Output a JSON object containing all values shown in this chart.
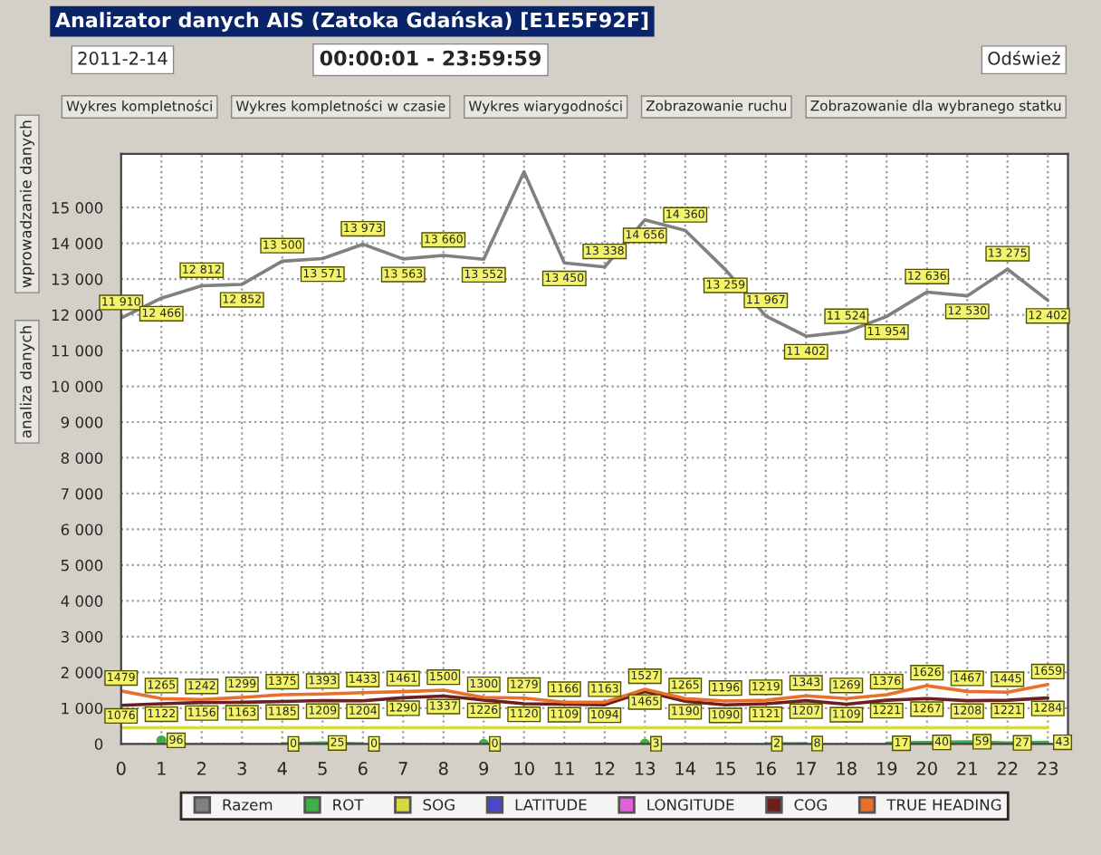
{
  "chart_data": {
    "type": "line",
    "title": "Analizator danych AIS (Zatoka Gdańska) [E1E5F92F]",
    "annotations": [
      "2011-2-14",
      "00:00:01 - 23:59:59",
      "Odśwież",
      "Wykres kompletności",
      "Wykres kompletności w czasie",
      "Wykres wiarygodności",
      "Zobrazowanie ruchu",
      "Zobrazowanie dla wybranego statku",
      "wprowadzanie danych",
      "analiza danych"
    ],
    "x": [
      0,
      1,
      2,
      3,
      4,
      5,
      6,
      7,
      8,
      9,
      10,
      11,
      12,
      13,
      14,
      15,
      16,
      17,
      18,
      19,
      20,
      21,
      22,
      23
    ],
    "xlim": [
      0,
      23.5
    ],
    "xticks": [
      0,
      1,
      2,
      3,
      4,
      5,
      6,
      7,
      8,
      9,
      10,
      11,
      12,
      13,
      14,
      15,
      16,
      17,
      18,
      19,
      20,
      21,
      22,
      23
    ],
    "ylim": [
      0,
      16500
    ],
    "yticks": [
      0,
      {
        "value": 1000,
        "label": "1 000"
      },
      {
        "value": 2000,
        "label": "2 000"
      },
      {
        "value": 3000,
        "label": "3 000"
      },
      {
        "value": 4000,
        "label": "4 000"
      },
      {
        "value": 5000,
        "label": "5 000"
      },
      {
        "value": 6000,
        "label": "6 000"
      },
      {
        "value": 7000,
        "label": "7 000"
      },
      {
        "value": 8000,
        "label": "8 000"
      },
      {
        "value": 9000,
        "label": "9 000"
      },
      {
        "value": 10000,
        "label": "10 000"
      },
      {
        "value": 11000,
        "label": "11 000"
      },
      {
        "value": 12000,
        "label": "12 000"
      },
      {
        "value": 13000,
        "label": "13 000"
      },
      {
        "value": 14000,
        "label": "14 000"
      },
      {
        "value": 15000,
        "label": "15 000"
      }
    ],
    "grid": true,
    "legend": "bottom",
    "marker": "none",
    "line_style": "solid",
    "series": [
      {
        "name": "Razem",
        "color": "#808080",
        "values": [
          11910,
          12466,
          12812,
          12852,
          13500,
          13571,
          13973,
          13563,
          13660,
          13552,
          16000,
          13450,
          13338,
          14656,
          14360,
          13259,
          11967,
          11402,
          11524,
          11954,
          12636,
          12530,
          13275,
          12402
        ],
        "value_labels": [
          "11 910",
          "12 466",
          "12 812",
          "12 852",
          "13 500",
          "13 571",
          "13 973",
          "13 563",
          "13 660",
          "13 552",
          null,
          "13 450",
          "13 338",
          "14 656",
          "14 360",
          "13 259",
          "11 967",
          "11 402",
          "11 524",
          "11 954",
          "12 636",
          "12 530",
          "13 275",
          "12 402"
        ]
      },
      {
        "name": "ROT",
        "color": "#3cb043",
        "values": [
          null,
          96,
          null,
          null,
          0,
          25,
          0,
          null,
          null,
          0,
          null,
          null,
          null,
          3,
          null,
          null,
          2,
          8,
          null,
          17,
          40,
          59,
          27,
          43
        ],
        "value_labels": [
          null,
          "96",
          null,
          null,
          "0",
          "25",
          "0",
          null,
          null,
          "0",
          null,
          null,
          null,
          "3",
          null,
          null,
          "2",
          "8",
          null,
          "17",
          "40",
          "59",
          "27",
          "43"
        ]
      },
      {
        "name": "SOG",
        "color": "#d8d840",
        "values": [
          450,
          450,
          450,
          450,
          450,
          450,
          450,
          450,
          450,
          450,
          450,
          450,
          450,
          450,
          450,
          450,
          450,
          450,
          450,
          450,
          450,
          450,
          450,
          450
        ]
      },
      {
        "name": "LATITUDE",
        "color": "#4848c8",
        "values": [
          null,
          null,
          null,
          null,
          null,
          null,
          null,
          null,
          null,
          null,
          null,
          null,
          null,
          null,
          null,
          null,
          null,
          null,
          null,
          null,
          null,
          null,
          null,
          null
        ]
      },
      {
        "name": "LONGITUDE",
        "color": "#e060e0",
        "values": [
          null,
          null,
          null,
          null,
          null,
          null,
          null,
          null,
          null,
          null,
          null,
          null,
          null,
          null,
          null,
          null,
          null,
          null,
          null,
          null,
          null,
          null,
          null,
          null
        ]
      },
      {
        "name": "COG",
        "color": "#6b1f1f",
        "values": [
          1076,
          1122,
          1156,
          1163,
          1185,
          1209,
          1204,
          1290,
          1337,
          1226,
          1120,
          1109,
          1094,
          1465,
          1190,
          1090,
          1121,
          1207,
          1109,
          1221,
          1267,
          1208,
          1221,
          1284
        ],
        "value_labels": [
          "1076",
          "1122",
          "1156",
          "1163",
          "1185",
          "1209",
          "1204",
          "1290",
          "1337",
          "1226",
          "1120",
          "1109",
          "1094",
          "1465",
          "1190",
          "1090",
          "1121",
          "1207",
          "1109",
          "1221",
          "1267",
          "1208",
          "1221",
          "1284"
        ]
      },
      {
        "name": "TRUE HEADING",
        "color": "#e8702a",
        "values": [
          1479,
          1265,
          1242,
          1299,
          1375,
          1393,
          1433,
          1461,
          1500,
          1300,
          1279,
          1166,
          1163,
          1527,
          1265,
          1196,
          1219,
          1343,
          1269,
          1376,
          1626,
          1467,
          1445,
          1659
        ],
        "value_labels": [
          "1479",
          "1265",
          "1242",
          "1299",
          "1375",
          "1393",
          "1433",
          "1461",
          "1500",
          "1300",
          "1279",
          "1166",
          "1163",
          "1527",
          "1265",
          "1196",
          "1219",
          "1343",
          "1269",
          "1376",
          "1626",
          "1467",
          "1445",
          "1659"
        ]
      }
    ]
  }
}
